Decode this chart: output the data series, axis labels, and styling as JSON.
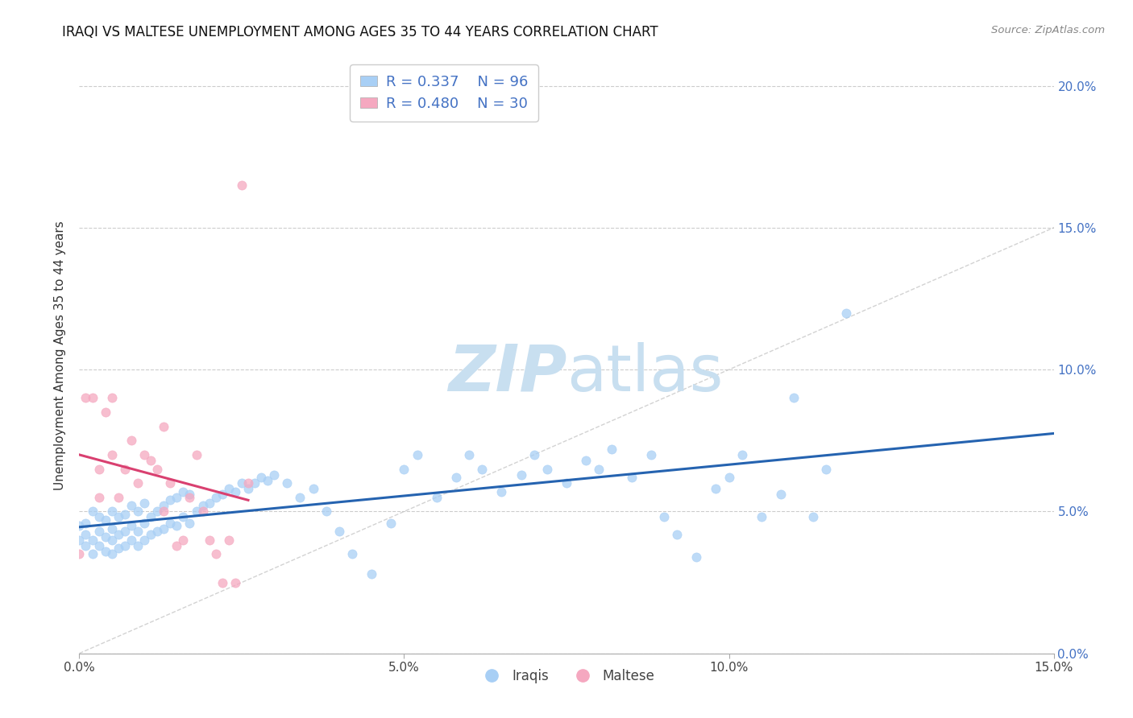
{
  "title": "IRAQI VS MALTESE UNEMPLOYMENT AMONG AGES 35 TO 44 YEARS CORRELATION CHART",
  "source": "Source: ZipAtlas.com",
  "ylabel_label": "Unemployment Among Ages 35 to 44 years",
  "legend_iraqis": "Iraqis",
  "legend_maltese": "Maltese",
  "r_iraqis": "0.337",
  "n_iraqis": "96",
  "r_maltese": "0.480",
  "n_maltese": "30",
  "color_iraqis": "#a8cff5",
  "color_maltese": "#f5a8c0",
  "color_iraqis_line": "#2563b0",
  "color_maltese_line": "#d94070",
  "color_diagonal": "#c0c0c0",
  "color_tick_blue": "#4472c4",
  "xlim": [
    0.0,
    0.15
  ],
  "ylim": [
    0.0,
    0.21
  ],
  "background_color": "#ffffff",
  "watermark_zip": "ZIP",
  "watermark_atlas": "atlas",
  "watermark_color_zip": "#c8dff0",
  "watermark_color_atlas": "#c8dff0",
  "iraqis_x": [
    0.0,
    0.0,
    0.001,
    0.001,
    0.001,
    0.002,
    0.002,
    0.002,
    0.003,
    0.003,
    0.003,
    0.004,
    0.004,
    0.004,
    0.005,
    0.005,
    0.005,
    0.005,
    0.006,
    0.006,
    0.006,
    0.007,
    0.007,
    0.007,
    0.008,
    0.008,
    0.008,
    0.009,
    0.009,
    0.009,
    0.01,
    0.01,
    0.01,
    0.011,
    0.011,
    0.012,
    0.012,
    0.013,
    0.013,
    0.014,
    0.014,
    0.015,
    0.015,
    0.016,
    0.016,
    0.017,
    0.017,
    0.018,
    0.019,
    0.02,
    0.021,
    0.022,
    0.023,
    0.024,
    0.025,
    0.026,
    0.027,
    0.028,
    0.029,
    0.03,
    0.032,
    0.034,
    0.036,
    0.038,
    0.04,
    0.042,
    0.045,
    0.048,
    0.05,
    0.052,
    0.055,
    0.058,
    0.06,
    0.062,
    0.065,
    0.068,
    0.07,
    0.072,
    0.075,
    0.078,
    0.08,
    0.082,
    0.085,
    0.088,
    0.09,
    0.092,
    0.095,
    0.098,
    0.1,
    0.102,
    0.105,
    0.108,
    0.11,
    0.113,
    0.115,
    0.118
  ],
  "iraqis_y": [
    0.04,
    0.045,
    0.038,
    0.042,
    0.046,
    0.035,
    0.04,
    0.05,
    0.038,
    0.043,
    0.048,
    0.036,
    0.041,
    0.047,
    0.035,
    0.04,
    0.044,
    0.05,
    0.037,
    0.042,
    0.048,
    0.038,
    0.043,
    0.049,
    0.04,
    0.045,
    0.052,
    0.038,
    0.043,
    0.05,
    0.04,
    0.046,
    0.053,
    0.042,
    0.048,
    0.043,
    0.05,
    0.044,
    0.052,
    0.046,
    0.054,
    0.045,
    0.055,
    0.048,
    0.057,
    0.046,
    0.056,
    0.05,
    0.052,
    0.053,
    0.055,
    0.056,
    0.058,
    0.057,
    0.06,
    0.058,
    0.06,
    0.062,
    0.061,
    0.063,
    0.06,
    0.055,
    0.058,
    0.05,
    0.043,
    0.035,
    0.028,
    0.046,
    0.065,
    0.07,
    0.055,
    0.062,
    0.07,
    0.065,
    0.057,
    0.063,
    0.07,
    0.065,
    0.06,
    0.068,
    0.065,
    0.072,
    0.062,
    0.07,
    0.048,
    0.042,
    0.034,
    0.058,
    0.062,
    0.07,
    0.048,
    0.056,
    0.09,
    0.048,
    0.065,
    0.12
  ],
  "maltese_x": [
    0.0,
    0.001,
    0.002,
    0.003,
    0.003,
    0.004,
    0.005,
    0.005,
    0.006,
    0.007,
    0.008,
    0.009,
    0.01,
    0.011,
    0.012,
    0.013,
    0.013,
    0.014,
    0.015,
    0.016,
    0.017,
    0.018,
    0.019,
    0.02,
    0.021,
    0.025,
    0.022,
    0.023,
    0.024,
    0.026
  ],
  "maltese_y": [
    0.035,
    0.09,
    0.09,
    0.065,
    0.055,
    0.085,
    0.09,
    0.07,
    0.055,
    0.065,
    0.075,
    0.06,
    0.07,
    0.068,
    0.065,
    0.08,
    0.05,
    0.06,
    0.038,
    0.04,
    0.055,
    0.07,
    0.05,
    0.04,
    0.035,
    0.165,
    0.025,
    0.04,
    0.025,
    0.06
  ]
}
